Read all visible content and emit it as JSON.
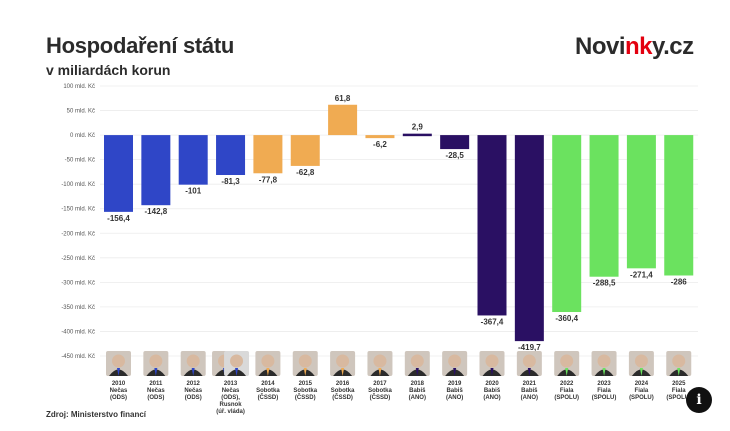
{
  "header": {
    "title": "Hospodaření státu",
    "subtitle": "v miliardách korun",
    "logo_prefix": "Novi",
    "logo_accent": "nk",
    "logo_suffix": "y.cz"
  },
  "footer": {
    "source": "Zdroj: Ministerstvo financí"
  },
  "info_button": {
    "label": "i"
  },
  "colors": {
    "nečas": "#2f46c7",
    "sobotka": "#f0ab52",
    "babiš": "#2a1063",
    "fiala": "#6be25f"
  },
  "chart_data": {
    "type": "bar",
    "title": "Hospodaření státu",
    "subtitle": "v miliardách korun",
    "xlabel": "",
    "ylabel": "",
    "ylim": [
      -450,
      100
    ],
    "grid": true,
    "y_ticks": [
      {
        "value": 100,
        "label": "100 mld. Kč"
      },
      {
        "value": 50,
        "label": "50 mld. Kč"
      },
      {
        "value": 0,
        "label": "0 mld. Kč"
      },
      {
        "value": -50,
        "label": "-50 mld. Kč"
      },
      {
        "value": -100,
        "label": "-100 mld. Kč"
      },
      {
        "value": -150,
        "label": "-150 mld. Kč"
      },
      {
        "value": -200,
        "label": "-200 mld. Kč"
      },
      {
        "value": -250,
        "label": "-250 mld. Kč"
      },
      {
        "value": -300,
        "label": "-300 mld. Kč"
      },
      {
        "value": -350,
        "label": "-350 mld. Kč"
      },
      {
        "value": -400,
        "label": "-400 mld. Kč"
      },
      {
        "value": -450,
        "label": "-450 mld. Kč"
      }
    ],
    "bars": [
      {
        "year": "2010",
        "leader": "Nečas",
        "party": "(ODS)",
        "value": -156.4,
        "label": "-156,4",
        "color": "#2f46c7",
        "portraits": 1
      },
      {
        "year": "2011",
        "leader": "Nečas",
        "party": "(ODS)",
        "value": -142.8,
        "label": "-142,8",
        "color": "#2f46c7",
        "portraits": 1
      },
      {
        "year": "2012",
        "leader": "Nečas",
        "party": "(ODS)",
        "value": -101,
        "label": "-101",
        "color": "#2f46c7",
        "portraits": 1
      },
      {
        "year": "2013",
        "leader": "Nečas",
        "party": "(ODS),",
        "extra1": "Rusnok",
        "extra2": "(úř. vláda)",
        "value": -81.3,
        "label": "-81,3",
        "color": "#2f46c7",
        "portraits": 2
      },
      {
        "year": "2014",
        "leader": "Sobotka",
        "party": "(ČSSD)",
        "value": -77.8,
        "label": "-77,8",
        "color": "#f0ab52",
        "portraits": 1
      },
      {
        "year": "2015",
        "leader": "Sobotka",
        "party": "(ČSSD)",
        "value": -62.8,
        "label": "-62,8",
        "color": "#f0ab52",
        "portraits": 1
      },
      {
        "year": "2016",
        "leader": "Sobotka",
        "party": "(ČSSD)",
        "value": 61.8,
        "label": "61,8",
        "color": "#f0ab52",
        "portraits": 1
      },
      {
        "year": "2017",
        "leader": "Sobotka",
        "party": "(ČSSD)",
        "value": -6.2,
        "label": "-6,2",
        "color": "#f0ab52",
        "portraits": 1
      },
      {
        "year": "2018",
        "leader": "Babiš",
        "party": "(ANO)",
        "value": 2.9,
        "label": "2,9",
        "color": "#2a1063",
        "portraits": 1
      },
      {
        "year": "2019",
        "leader": "Babiš",
        "party": "(ANO)",
        "value": -28.5,
        "label": "-28,5",
        "color": "#2a1063",
        "portraits": 1
      },
      {
        "year": "2020",
        "leader": "Babiš",
        "party": "(ANO)",
        "value": -367.4,
        "label": "-367,4",
        "color": "#2a1063",
        "portraits": 1
      },
      {
        "year": "2021",
        "leader": "Babiš",
        "party": "(ANO)",
        "value": -419.7,
        "label": "-419,7",
        "color": "#2a1063",
        "portraits": 1
      },
      {
        "year": "2022",
        "leader": "Fiala",
        "party": "(SPOLU)",
        "value": -360.4,
        "label": "-360,4",
        "color": "#6be25f",
        "portraits": 1
      },
      {
        "year": "2023",
        "leader": "Fiala",
        "party": "(SPOLU)",
        "value": -288.5,
        "label": "-288,5",
        "color": "#6be25f",
        "portraits": 1
      },
      {
        "year": "2024",
        "leader": "Fiala",
        "party": "(SPOLU)",
        "value": -271.4,
        "label": "-271,4",
        "color": "#6be25f",
        "portraits": 1
      },
      {
        "year": "2025",
        "leader": "Fiala",
        "party": "(SPOLU)",
        "value": -286,
        "label": "-286",
        "color": "#6be25f",
        "portraits": 1
      }
    ]
  }
}
